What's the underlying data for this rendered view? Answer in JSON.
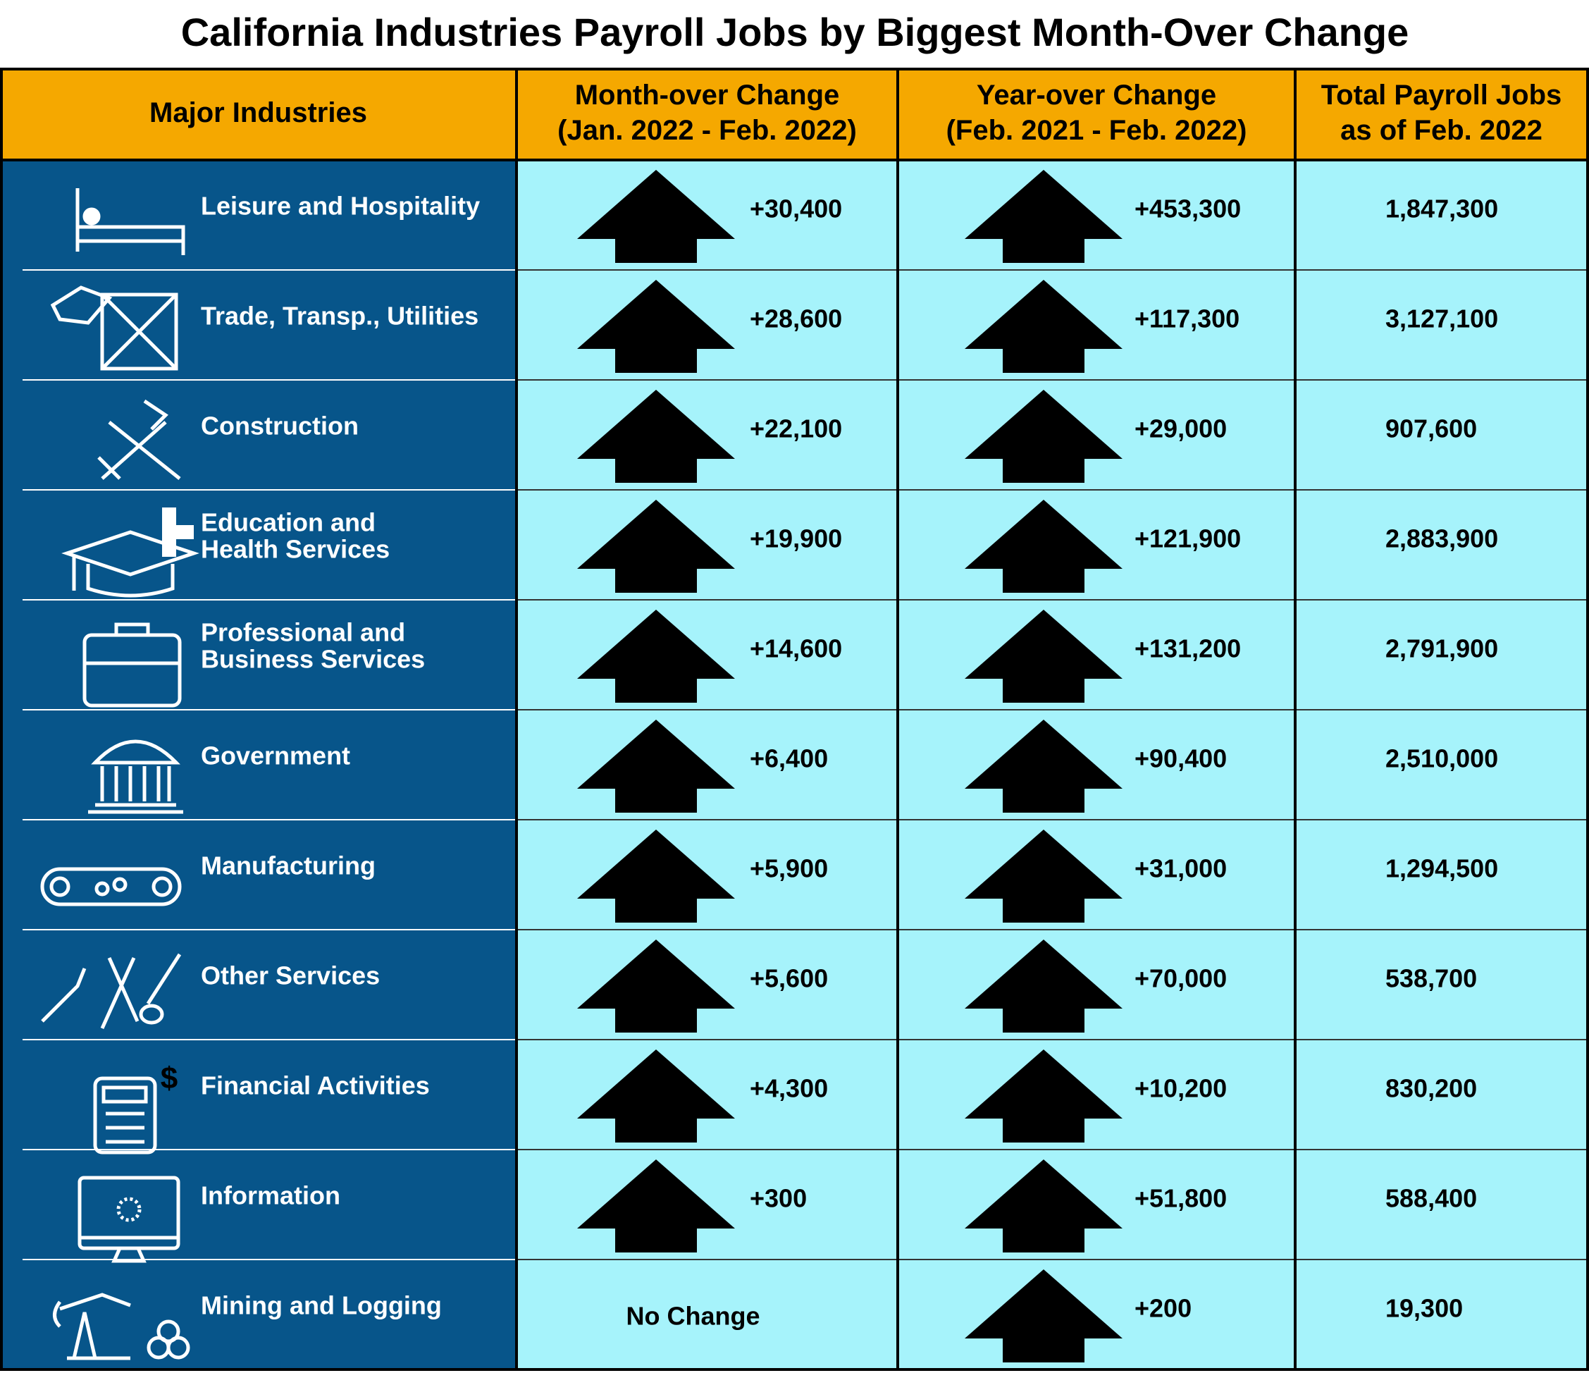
{
  "title": "California Industries Payroll Jobs by Biggest Month-Over Change",
  "table": {
    "headers": [
      [
        "Major Industries"
      ],
      [
        "Month-over Change",
        "(Jan. 2022 - Feb. 2022)"
      ],
      [
        "Year-over Change",
        "(Feb. 2021 - Feb. 2022)"
      ],
      [
        "Total Payroll Jobs",
        "as of Feb. 2022"
      ]
    ],
    "rows": [
      [
        [
          "Leisure and Hospitality"
        ],
        "+30,400",
        "+453,300",
        "1,847,300"
      ],
      [
        [
          "Trade, Transp., Utilities"
        ],
        "+28,600",
        "+117,300",
        "3,127,100"
      ],
      [
        [
          "Construction"
        ],
        "+22,100",
        "+29,000",
        "907,600"
      ],
      [
        [
          "Education and",
          "Health Services"
        ],
        "+19,900",
        "+121,900",
        "2,883,900"
      ],
      [
        [
          "Professional and",
          "Business Services"
        ],
        "+14,600",
        "+131,200",
        "2,791,900"
      ],
      [
        [
          "Government"
        ],
        "+6,400",
        "+90,400",
        "2,510,000"
      ],
      [
        [
          "Manufacturing"
        ],
        "+5,900",
        "+31,000",
        "1,294,500"
      ],
      [
        [
          "Other Services"
        ],
        "+5,600",
        "+70,000",
        "538,700"
      ],
      [
        [
          "Financial Activities"
        ],
        "+4,300",
        "+10,200",
        "830,200"
      ],
      [
        [
          "Information"
        ],
        "+300",
        "+51,800",
        "588,400"
      ],
      [
        [
          "Mining and Logging"
        ],
        "No Change",
        "+200",
        "19,300"
      ]
    ]
  }
}
